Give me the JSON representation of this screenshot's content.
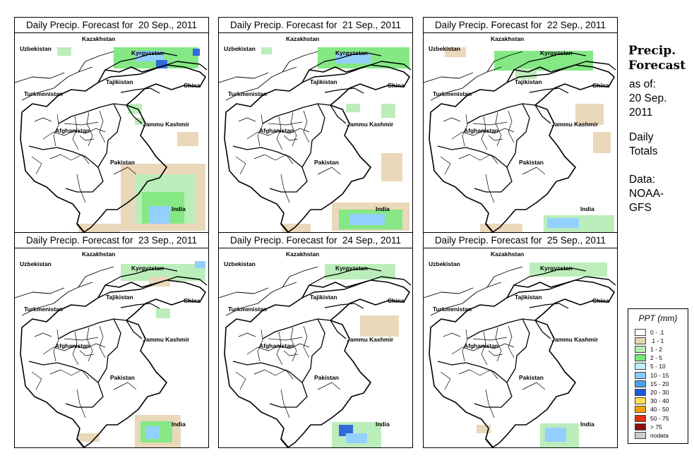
{
  "panels": [
    {
      "title": "Daily Precip. Forecast for  20 Sep., 2011"
    },
    {
      "title": "Daily Precip. Forecast for  21 Sep., 2011"
    },
    {
      "title": "Daily Precip. Forecast for  22 Sep., 2011"
    },
    {
      "title": "Daily Precip. Forecast for  23 Sep., 2011"
    },
    {
      "title": "Daily Precip. Forecast for  24 Sep., 2011"
    },
    {
      "title": "Daily Precip. Forecast for  25 Sep., 2011"
    }
  ],
  "map_labels": {
    "kazakhstan": "Kazakhstan",
    "uzbekistan": "Uzbekistan",
    "kyrgyzstan": "Kyrgyzstan",
    "tajikistan": "Tajikistan",
    "china": "China",
    "turkmenistan": "Turkmenistan",
    "afghanistan": "Afghanistan",
    "jammu_kashmir": "Jammu Kashmir",
    "pakistan": "Pakistan",
    "india": "India"
  },
  "sidebar": {
    "title_line1": "Precip.",
    "title_line2": "Forecast",
    "asof_line1": "as of:",
    "asof_line2": "20 Sep.",
    "asof_line3": "2011",
    "totals_line1": "Daily",
    "totals_line2": "Totals",
    "data_line1": "Data:",
    "data_line2": "NOAA-",
    "data_line3": "GFS"
  },
  "legend": {
    "title": "PPT (mm)",
    "items": [
      {
        "label": "0 - .1",
        "color": "#ffffff"
      },
      {
        "label": ".1 - 1",
        "color": "#e8d4b4"
      },
      {
        "label": "1 - 2",
        "color": "#b4ecb4"
      },
      {
        "label": "2 - 5",
        "color": "#78e678"
      },
      {
        "label": "5 - 10",
        "color": "#c0eeff"
      },
      {
        "label": "10 - 15",
        "color": "#88ccff"
      },
      {
        "label": "15 - 20",
        "color": "#4aa0f0"
      },
      {
        "label": "20 - 30",
        "color": "#1a5ad8"
      },
      {
        "label": "30 - 40",
        "color": "#ffe050"
      },
      {
        "label": "40 - 50",
        "color": "#f8a000"
      },
      {
        "label": "50 - 75",
        "color": "#e03010"
      },
      {
        "label": "> 75",
        "color": "#8a1010"
      },
      {
        "label": "nodata",
        "color": "#cccccc"
      }
    ]
  }
}
